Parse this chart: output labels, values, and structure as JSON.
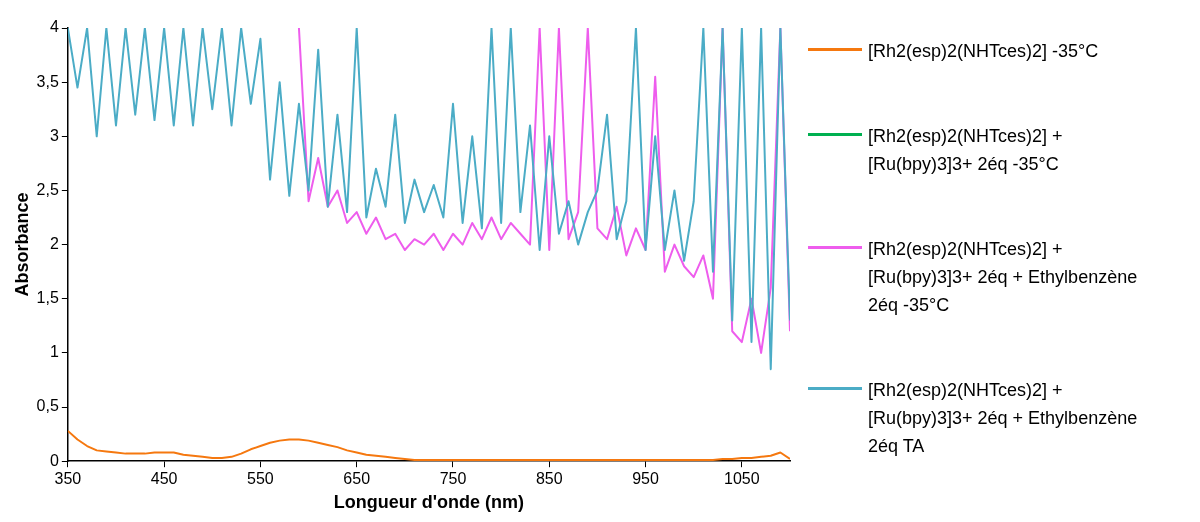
{
  "chart_data": {
    "type": "line",
    "xlabel": "Longueur d'onde (nm)",
    "ylabel": "Absorbance",
    "xlim": [
      350,
      1100
    ],
    "xticks": [
      350,
      450,
      550,
      650,
      750,
      850,
      950,
      1050
    ],
    "ylim": [
      0,
      4
    ],
    "yticks": [
      0,
      {
        "value": 0.5,
        "label": "0,5"
      },
      1,
      {
        "value": 1.5,
        "label": "1,5"
      },
      2,
      {
        "value": 2.5,
        "label": "2,5"
      },
      3,
      {
        "value": 3.5,
        "label": "3,5"
      },
      4
    ],
    "grid": false,
    "legend": "right",
    "marker": "none",
    "line_style": "solid",
    "series": [
      {
        "name": "[Rh2(esp)2(NHTces)2] -35°C",
        "color": "#f5780f",
        "x": [
          350,
          360,
          370,
          380,
          390,
          400,
          410,
          420,
          430,
          440,
          450,
          460,
          470,
          480,
          490,
          500,
          510,
          520,
          530,
          540,
          550,
          560,
          570,
          580,
          590,
          600,
          610,
          620,
          630,
          640,
          650,
          660,
          670,
          680,
          690,
          700,
          710,
          720,
          730,
          740,
          750,
          760,
          770,
          780,
          790,
          800,
          810,
          820,
          830,
          840,
          850,
          860,
          870,
          880,
          890,
          900,
          910,
          920,
          930,
          940,
          950,
          960,
          970,
          980,
          990,
          1000,
          1010,
          1020,
          1030,
          1040,
          1050,
          1060,
          1070,
          1080,
          1090,
          1100
        ],
        "values": [
          0.28,
          0.2,
          0.14,
          0.1,
          0.09,
          0.08,
          0.07,
          0.07,
          0.07,
          0.08,
          0.08,
          0.08,
          0.06,
          0.05,
          0.04,
          0.03,
          0.03,
          0.04,
          0.07,
          0.11,
          0.14,
          0.17,
          0.19,
          0.2,
          0.2,
          0.19,
          0.17,
          0.15,
          0.13,
          0.1,
          0.08,
          0.06,
          0.05,
          0.04,
          0.03,
          0.02,
          0.01,
          0.01,
          0.01,
          0.01,
          0.01,
          0.01,
          0.01,
          0.01,
          0.01,
          0.01,
          0.01,
          0.01,
          0.01,
          0.01,
          0.01,
          0.01,
          0.01,
          0.01,
          0.01,
          0.01,
          0.01,
          0.01,
          0.01,
          0.01,
          0.01,
          0.01,
          0.01,
          0.01,
          0.01,
          0.01,
          0.01,
          0.01,
          0.02,
          0.02,
          0.03,
          0.03,
          0.04,
          0.05,
          0.08,
          0.02
        ]
      },
      {
        "name": "[Rh2(esp)2(NHTces)2] + [Ru(bpy)3]3+ 2éq -35°C",
        "color": "#00b050"
      },
      {
        "name": "[Rh2(esp)2(NHTces)2] + [Ru(bpy)3]3+ 2éq + Ethylbenzène 2éq -35°C",
        "color": "#ee5ded",
        "x": [
          590,
          600,
          610,
          620,
          630,
          640,
          650,
          660,
          670,
          680,
          690,
          700,
          710,
          720,
          730,
          740,
          750,
          760,
          770,
          780,
          790,
          800,
          810,
          820,
          830,
          840,
          850,
          860,
          870,
          880,
          890,
          900,
          910,
          920,
          930,
          940,
          950,
          960,
          970,
          980,
          990,
          1000,
          1010,
          1020,
          1030,
          1040,
          1050,
          1060,
          1070,
          1080,
          1090,
          1100
        ],
        "values": [
          4,
          2.4,
          2.8,
          2.35,
          2.5,
          2.2,
          2.3,
          2.1,
          2.25,
          2.05,
          2.1,
          1.95,
          2.05,
          2,
          2.1,
          1.95,
          2.1,
          2,
          2.2,
          2.05,
          2.25,
          2.05,
          2.2,
          2.1,
          2,
          4,
          1.95,
          4,
          2.05,
          2.3,
          4,
          2.15,
          2.05,
          2.35,
          1.9,
          2.15,
          1.95,
          3.55,
          1.75,
          2,
          1.8,
          1.7,
          1.9,
          1.5,
          4,
          1.2,
          1.1,
          1.5,
          1,
          1.6,
          4,
          1.2
        ]
      },
      {
        "name": "[Rh2(esp)2(NHTces)2] + [Ru(bpy)3]3+ 2éq + Ethylbenzène 2éq TA",
        "color": "#4bacc6",
        "x": [
          350,
          360,
          370,
          380,
          390,
          400,
          410,
          420,
          430,
          440,
          450,
          460,
          470,
          480,
          490,
          500,
          510,
          520,
          530,
          540,
          550,
          560,
          570,
          580,
          590,
          600,
          610,
          620,
          630,
          640,
          650,
          660,
          670,
          680,
          690,
          700,
          710,
          720,
          730,
          740,
          750,
          760,
          770,
          780,
          790,
          800,
          810,
          820,
          830,
          840,
          850,
          860,
          870,
          880,
          890,
          900,
          910,
          920,
          930,
          940,
          950,
          960,
          970,
          980,
          990,
          1000,
          1010,
          1020,
          1030,
          1040,
          1050,
          1060,
          1070,
          1080,
          1090,
          1100
        ],
        "values": [
          4,
          3.45,
          4,
          3,
          4,
          3.1,
          4,
          3.2,
          4,
          3.15,
          4,
          3.1,
          4,
          3.1,
          4,
          3.25,
          4,
          3.1,
          4,
          3.3,
          3.9,
          2.6,
          3.5,
          2.45,
          3.3,
          2.5,
          3.8,
          2.35,
          3.2,
          2.3,
          4,
          2.25,
          2.7,
          2.35,
          3.2,
          2.2,
          2.6,
          2.3,
          2.55,
          2.25,
          3.3,
          2.2,
          3,
          2.15,
          4,
          2.2,
          4,
          2.3,
          3.1,
          1.95,
          3,
          2.1,
          2.4,
          2,
          2.3,
          2.5,
          3.2,
          2.05,
          2.4,
          4,
          1.95,
          3,
          1.95,
          2.5,
          1.85,
          2.4,
          4,
          1.75,
          4,
          1.3,
          4,
          1.1,
          4,
          0.85,
          4,
          1.3
        ]
      }
    ]
  }
}
